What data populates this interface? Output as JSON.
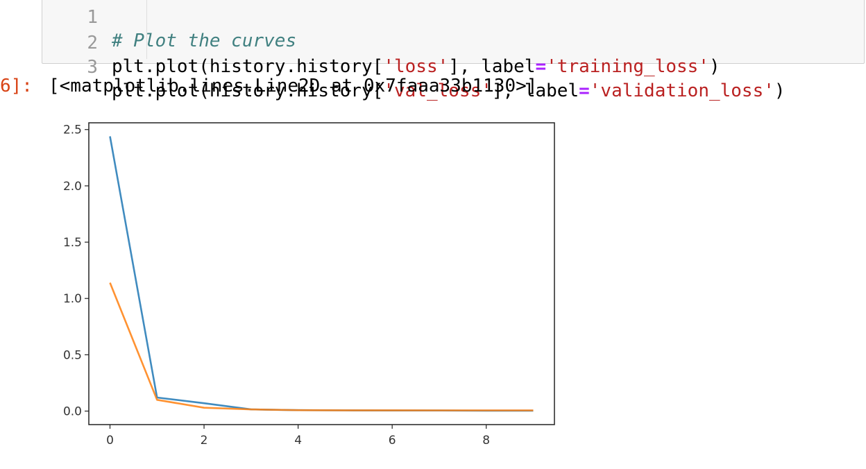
{
  "input_cell": {
    "lines": [
      {
        "num": "1",
        "comment": "# Plot the curves"
      },
      {
        "num": "2",
        "p1": "plt.plot(history.history[",
        "s1": "'loss'",
        "p2": "], label",
        "eq": "=",
        "s2": "'training_loss'",
        "p3": ")"
      },
      {
        "num": "3",
        "p1": "plt.plot(history.history[",
        "s1": "'val_loss'",
        "p2": "], label",
        "eq": "=",
        "s2": "'validation_loss'",
        "p3": ")"
      }
    ]
  },
  "output": {
    "prompt": "6]:",
    "text": "[<matplotlib.lines.Line2D at 0x7faaa33b1130>]"
  },
  "chart_data": {
    "type": "line",
    "x": [
      0,
      1,
      2,
      3,
      4,
      5,
      6,
      7,
      8,
      9
    ],
    "series": [
      {
        "color": "#1f77b4",
        "values": [
          2.44,
          0.12,
          0.07,
          0.015,
          0.008,
          0.006,
          0.005,
          0.005,
          0.004,
          0.004
        ]
      },
      {
        "color": "#ff7f0e",
        "values": [
          1.14,
          0.1,
          0.03,
          0.015,
          0.008,
          0.007,
          0.007,
          0.006,
          0.006,
          0.006
        ]
      }
    ],
    "xticks": [
      0,
      2,
      4,
      6,
      8
    ],
    "yticks": [
      0.0,
      0.5,
      1.0,
      1.5,
      2.0,
      2.5
    ],
    "xlim": [
      -0.45,
      9.45
    ],
    "ylim": [
      -0.12,
      2.56
    ],
    "grid": false,
    "legend": false
  }
}
